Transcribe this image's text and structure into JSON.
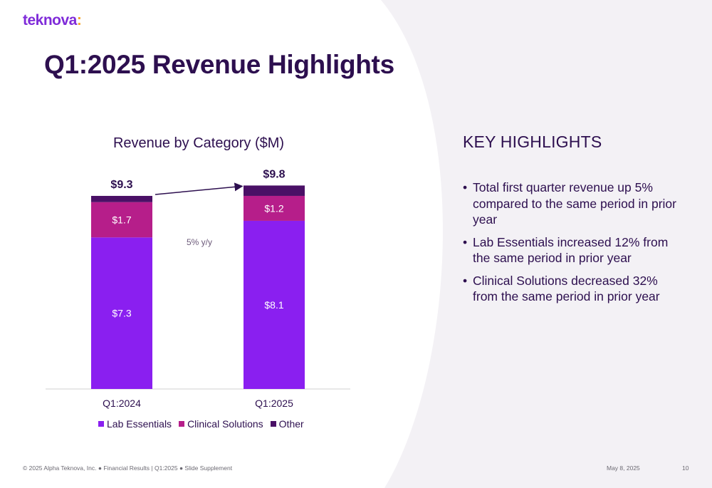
{
  "brand": {
    "logo_text": "teknova",
    "logo_colon": ":"
  },
  "slide_title": "Q1:2025 Revenue Highlights",
  "colors": {
    "lab_essentials": "#8a1ff0",
    "clinical_solutions": "#b61e8a",
    "other": "#4a1066",
    "title": "#2d0f4f",
    "background_curve": "#f3f1f5",
    "logo": "#7f2bd9",
    "logo_accent": "#f2a62e"
  },
  "chart_data": {
    "type": "bar",
    "stacked": true,
    "title": "Revenue by Category ($M)",
    "categories": [
      "Q1:2024",
      "Q1:2025"
    ],
    "series": [
      {
        "name": "Lab Essentials",
        "values": [
          7.3,
          8.1
        ],
        "labels": [
          "$7.3",
          "$8.1"
        ]
      },
      {
        "name": "Clinical Solutions",
        "values": [
          1.7,
          1.2
        ],
        "labels": [
          "$1.7",
          "$1.2"
        ]
      },
      {
        "name": "Other",
        "values": [
          0.3,
          0.5
        ],
        "labels": [
          "",
          ""
        ]
      }
    ],
    "totals": [
      9.3,
      9.8
    ],
    "total_labels": [
      "$9.3",
      "$9.8"
    ],
    "annotation": "5% y/y",
    "legend_position": "bottom",
    "ylim": [
      0,
      10.5
    ],
    "grid": false
  },
  "key_highlights": {
    "title": "KEY HIGHLIGHTS",
    "bullets": [
      "Total first quarter revenue up 5% compared to the same period in prior year",
      "Lab Essentials increased 12% from the same period in prior year",
      "Clinical Solutions decreased 32% from the same period in prior year"
    ]
  },
  "footer": {
    "left": "© 2025 Alpha Teknova, Inc.  ●  Financial Results | Q1:2025  ●  Slide Supplement",
    "date": "May 8, 2025",
    "page_number": "10"
  }
}
